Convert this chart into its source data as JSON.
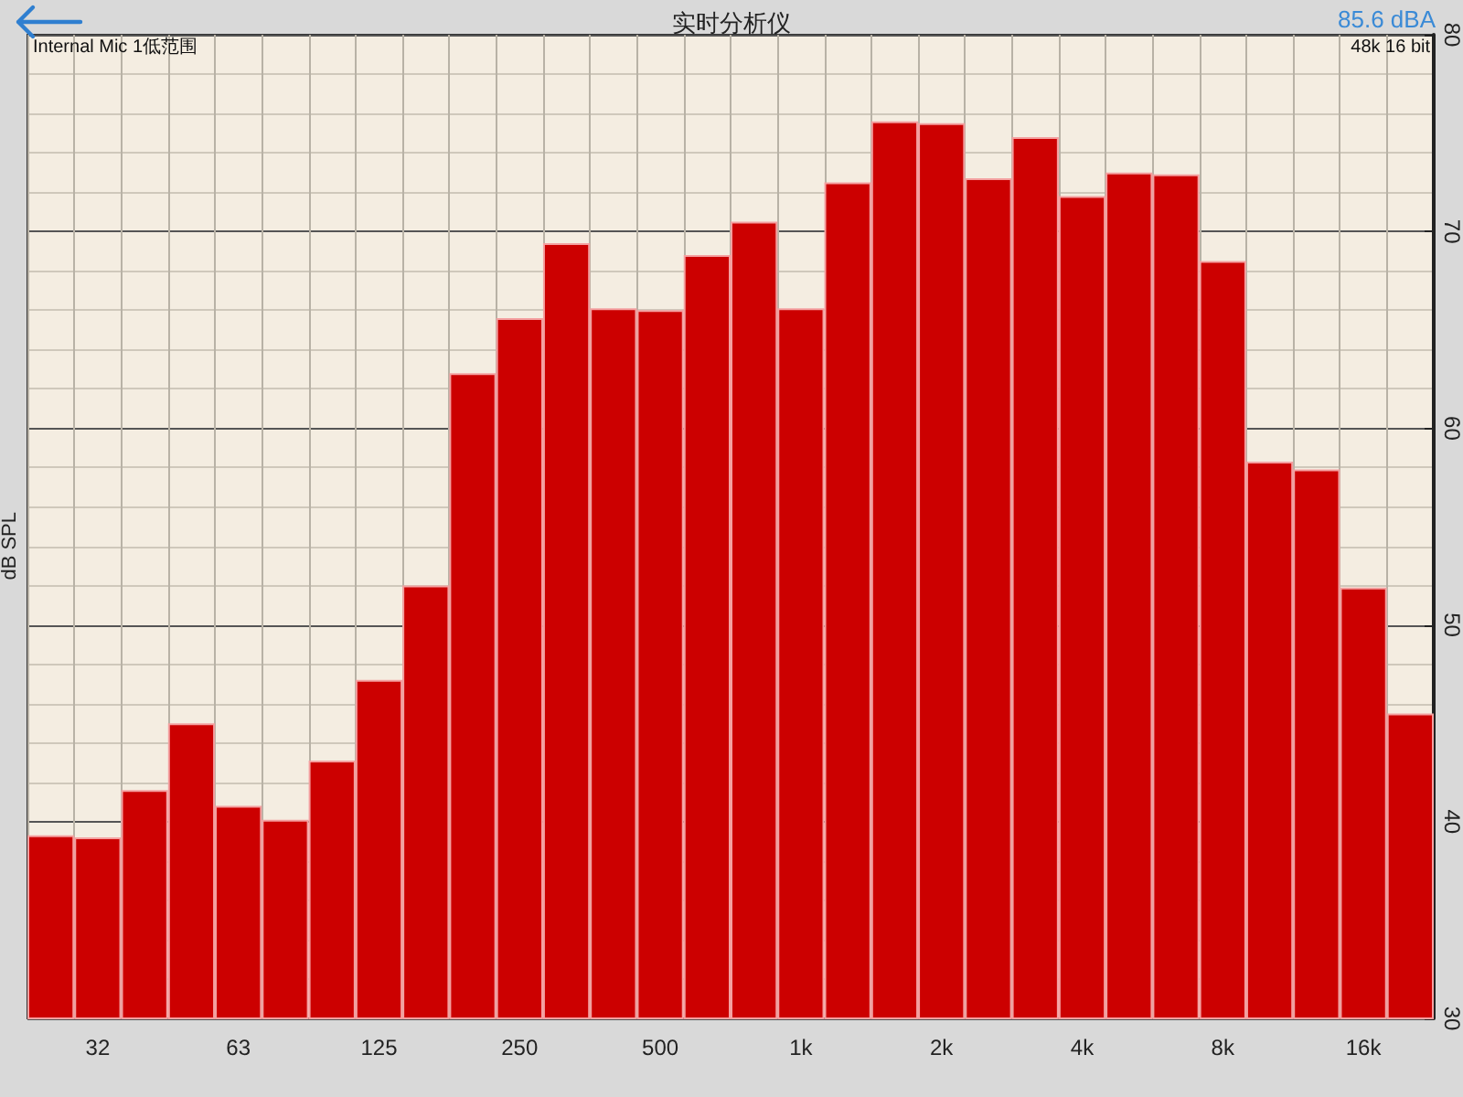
{
  "chart_data": {
    "type": "bar",
    "title": "实时分析仪",
    "ylabel": "dB SPL",
    "annotations": [
      "85.6 dBA",
      "Internal Mic 1低范围",
      "48k 16 bit"
    ],
    "categories": [
      null,
      "32",
      null,
      null,
      "63",
      null,
      null,
      "125",
      null,
      null,
      "250",
      null,
      null,
      "500",
      null,
      null,
      "1k",
      null,
      null,
      "2k",
      null,
      null,
      "4k",
      null,
      null,
      "8k",
      null,
      null,
      "16k",
      null
    ],
    "values": [
      39.3,
      39.2,
      41.6,
      45.0,
      40.8,
      40.1,
      43.1,
      47.2,
      52.0,
      62.8,
      65.6,
      69.4,
      66.1,
      66.0,
      68.8,
      70.5,
      66.1,
      72.5,
      75.6,
      75.5,
      72.7,
      74.8,
      71.8,
      73.0,
      72.9,
      68.5,
      58.3,
      57.9,
      51.9,
      45.5
    ],
    "color": "#cc0000",
    "ylim": [
      30,
      80
    ],
    "yticks": [
      30,
      40,
      50,
      60,
      70,
      80
    ],
    "grid": true
  }
}
